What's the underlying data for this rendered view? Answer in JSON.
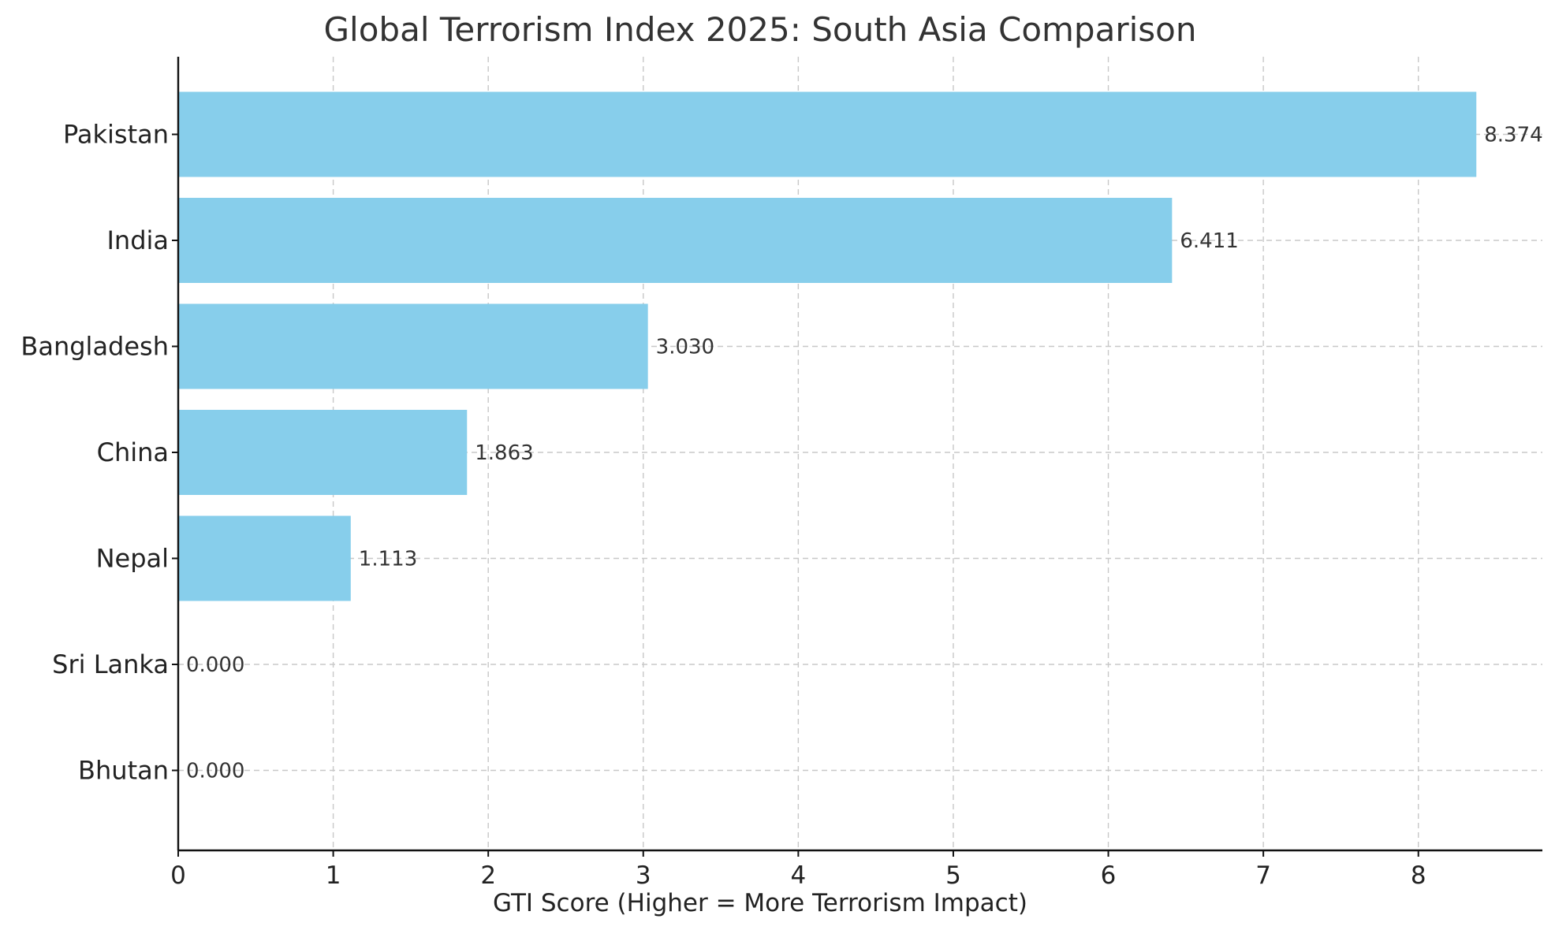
{
  "chart_data": {
    "type": "bar",
    "orientation": "horizontal",
    "title": "Global Terrorism Index 2025: South Asia Comparison",
    "xlabel": "GTI Score (Higher = More Terrorism Impact)",
    "ylabel": "",
    "categories": [
      "Pakistan",
      "India",
      "Bangladesh",
      "China",
      "Nepal",
      "Sri Lanka",
      "Bhutan"
    ],
    "values": [
      8.374,
      6.411,
      3.03,
      1.863,
      1.113,
      0.0,
      0.0
    ],
    "value_labels": [
      "8.374",
      "6.411",
      "3.030",
      "1.863",
      "1.113",
      "0.000",
      "0.000"
    ],
    "xlim": [
      0,
      8.8
    ],
    "xticks": [
      0,
      1,
      2,
      3,
      4,
      5,
      6,
      7,
      8
    ],
    "grid": true,
    "legend": "none",
    "bar_color": "#87ceeb"
  }
}
